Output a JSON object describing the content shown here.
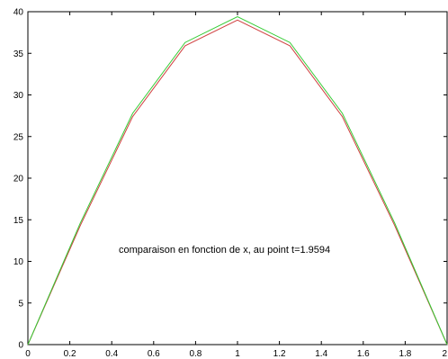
{
  "chart_data": {
    "type": "line",
    "title": "",
    "xlabel": "",
    "ylabel": "",
    "xlim": [
      0,
      2
    ],
    "ylim": [
      0,
      40
    ],
    "xticks": [
      "0",
      "0.2",
      "0.4",
      "0.6",
      "0.8",
      "1",
      "1.2",
      "1.4",
      "1.6",
      "1.8",
      "2"
    ],
    "yticks": [
      "0",
      "5",
      "10",
      "15",
      "20",
      "25",
      "30",
      "35",
      "40"
    ],
    "grid": false,
    "legend": false,
    "annotation": "comparaison en fonction de x, au point t=1.9594",
    "series": [
      {
        "color": "#d04040",
        "x": [
          0,
          0.25,
          0.5,
          0.75,
          1.0,
          1.25,
          1.5,
          1.75,
          2.0
        ],
        "y": [
          0,
          14.3,
          27.4,
          35.9,
          39.0,
          35.9,
          27.4,
          14.3,
          0
        ]
      },
      {
        "color": "#33cc33",
        "x": [
          0,
          0.25,
          0.5,
          0.75,
          1.0,
          1.25,
          1.5,
          1.75,
          2.0
        ],
        "y": [
          0,
          14.6,
          27.8,
          36.3,
          39.4,
          36.3,
          27.8,
          14.6,
          0
        ]
      }
    ]
  }
}
